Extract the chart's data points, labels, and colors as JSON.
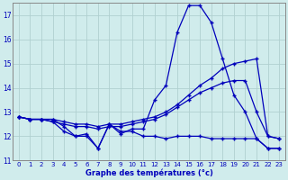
{
  "xlabel": "Graphe des températures (°c)",
  "bg_color": "#d0ecec",
  "line_color": "#0000bb",
  "grid_color": "#b0d0d0",
  "x": [
    0,
    1,
    2,
    3,
    4,
    5,
    6,
    7,
    8,
    9,
    10,
    11,
    12,
    13,
    14,
    15,
    16,
    17,
    18,
    19,
    20,
    21,
    22,
    23
  ],
  "line1": [
    12.8,
    12.7,
    12.7,
    12.7,
    12.4,
    12.0,
    12.1,
    11.5,
    12.5,
    12.1,
    12.3,
    12.3,
    13.5,
    14.1,
    16.3,
    17.4,
    17.4,
    16.7,
    15.2,
    13.7,
    13.0,
    11.9,
    11.5,
    11.5
  ],
  "line2": [
    12.8,
    12.7,
    12.7,
    12.7,
    12.6,
    12.5,
    12.5,
    12.4,
    12.5,
    12.5,
    12.6,
    12.7,
    12.8,
    13.0,
    13.3,
    13.7,
    14.1,
    14.4,
    14.8,
    15.0,
    15.1,
    15.2,
    12.0,
    11.9
  ],
  "line3": [
    12.8,
    12.7,
    12.7,
    12.6,
    12.5,
    12.4,
    12.4,
    12.3,
    12.4,
    12.4,
    12.5,
    12.6,
    12.7,
    12.9,
    13.2,
    13.5,
    13.8,
    14.0,
    14.2,
    14.3,
    14.3,
    13.0,
    12.0,
    11.9
  ],
  "line4": [
    12.8,
    12.7,
    12.7,
    12.6,
    12.2,
    12.0,
    12.0,
    11.5,
    12.5,
    12.2,
    12.2,
    12.0,
    12.0,
    11.9,
    12.0,
    12.0,
    12.0,
    11.9,
    11.9,
    11.9,
    11.9,
    11.9,
    11.5,
    11.5
  ],
  "ylim": [
    11.0,
    17.5
  ],
  "yticks": [
    11,
    12,
    13,
    14,
    15,
    16,
    17
  ],
  "xlim": [
    -0.5,
    23.5
  ]
}
